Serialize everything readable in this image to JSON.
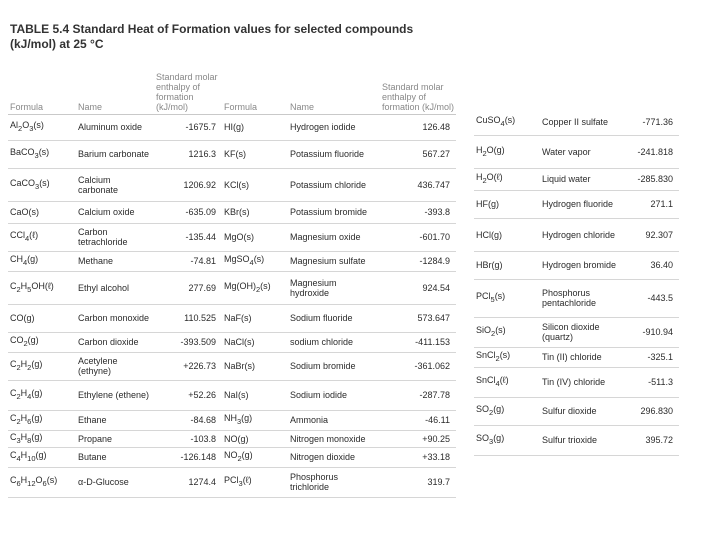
{
  "title": "TABLE 5.4 Standard Heat of Formation values for selected compounds (kJ/mol) at 25 °C",
  "headers": {
    "formula": "Formula",
    "name": "Name",
    "enthalpy": "Standard molar enthalpy of formation (kJ/mol)"
  },
  "left_rows": [
    {
      "f1": "Al2O3(s)",
      "n1": "Aluminum oxide",
      "v1": "-1675.7",
      "f2": "HI(g)",
      "n2": "Hydrogen iodide",
      "v2": "126.48"
    },
    {
      "f1": "BaCO3(s)",
      "n1": "Barium carbonate",
      "v1": "1216.3",
      "f2": "KF(s)",
      "n2": "Potassium fluoride",
      "v2": "567.27"
    },
    {
      "f1": "CaCO3(s)",
      "n1": "Calcium carbonate",
      "v1": "1206.92",
      "f2": "KCl(s)",
      "n2": "Potassium chloride",
      "v2": "436.747"
    },
    {
      "f1": "CaO(s)",
      "n1": "Calcium oxide",
      "v1": "-635.09",
      "f2": "KBr(s)",
      "n2": "Potassium bromide",
      "v2": "-393.8"
    },
    {
      "f1": "CCl4(ℓ)",
      "n1": "Carbon tetrachloride",
      "v1": "-135.44",
      "f2": "MgO(s)",
      "n2": "Magnesium oxide",
      "v2": "-601.70"
    },
    {
      "f1": "CH4(g)",
      "n1": "Methane",
      "v1": "-74.81",
      "f2": "MgSO4(s)",
      "n2": "Magnesium sulfate",
      "v2": "-1284.9"
    },
    {
      "f1": "C2H5OH(ℓ)",
      "n1": "Ethyl alcohol",
      "v1": "277.69",
      "f2": "Mg(OH)2(s)",
      "n2": "Magnesium hydroxide",
      "v2": "924.54"
    },
    {
      "f1": "CO(g)",
      "n1": "Carbon monoxide",
      "v1": "110.525",
      "f2": "NaF(s)",
      "n2": "Sodium fluoride",
      "v2": "573.647"
    },
    {
      "f1": "CO2(g)",
      "n1": "Carbon dioxide",
      "v1": "-393.509",
      "f2": "NaCl(s)",
      "n2": "sodium chloride",
      "v2": "-411.153"
    },
    {
      "f1": "C2H2(g)",
      "n1": "Acetylene (ethyne)",
      "v1": "+226.73",
      "f2": "NaBr(s)",
      "n2": "Sodium bromide",
      "v2": "-361.062"
    },
    {
      "f1": "C2H4(g)",
      "n1": "Ethylene (ethene)",
      "v1": "+52.26",
      "f2": "NaI(s)",
      "n2": "Sodium iodide",
      "v2": "-287.78"
    },
    {
      "f1": "C2H6(g)",
      "n1": "Ethane",
      "v1": "-84.68",
      "f2": "NH3(g)",
      "n2": "Ammonia",
      "v2": "-46.11"
    },
    {
      "f1": "C3H8(g)",
      "n1": "Propane",
      "v1": "-103.8",
      "f2": "NO(g)",
      "n2": "Nitrogen monoxide",
      "v2": "+90.25"
    },
    {
      "f1": "C4H10(g)",
      "n1": "Butane",
      "v1": "-126.148",
      "f2": "NO2(g)",
      "n2": "Nitrogen dioxide",
      "v2": "+33.18"
    },
    {
      "f1": "C6H12O6(s)",
      "n1": "α-D-Glucose",
      "v1": "1274.4",
      "f2": "PCl3(ℓ)",
      "n2": "Phosphorus trichloride",
      "v2": "319.7"
    }
  ],
  "right_rows": [
    {
      "f": "CuSO4(s)",
      "n": "Copper II sulfate",
      "v": "-771.36"
    },
    {
      "f": "H2O(g)",
      "n": "Water vapor",
      "v": "-241.818"
    },
    {
      "f": "H2O(ℓ)",
      "n": "Liquid water",
      "v": "-285.830"
    },
    {
      "f": "HF(g)",
      "n": "Hydrogen fluoride",
      "v": "271.1"
    },
    {
      "f": "HCl(g)",
      "n": "Hydrogen chloride",
      "v": "92.307"
    },
    {
      "f": "HBr(g)",
      "n": "Hydrogen bromide",
      "v": "36.40"
    },
    {
      "f": "PCl5(s)",
      "n": "Phosphorus pentachloride",
      "v": "-443.5"
    },
    {
      "f": "SiO2(s)",
      "n": "Silicon dioxide (quartz)",
      "v": "-910.94"
    },
    {
      "f": "SnCl2(s)",
      "n": "Tin (II) chloride",
      "v": "-325.1"
    },
    {
      "f": "SnCl4(ℓ)",
      "n": "Tin (IV) chloride",
      "v": "-511.3"
    },
    {
      "f": "SO2(g)",
      "n": "Sulfur dioxide",
      "v": "296.830"
    },
    {
      "f": "SO3(g)",
      "n": "Sulfur trioxide",
      "v": "395.72"
    }
  ]
}
